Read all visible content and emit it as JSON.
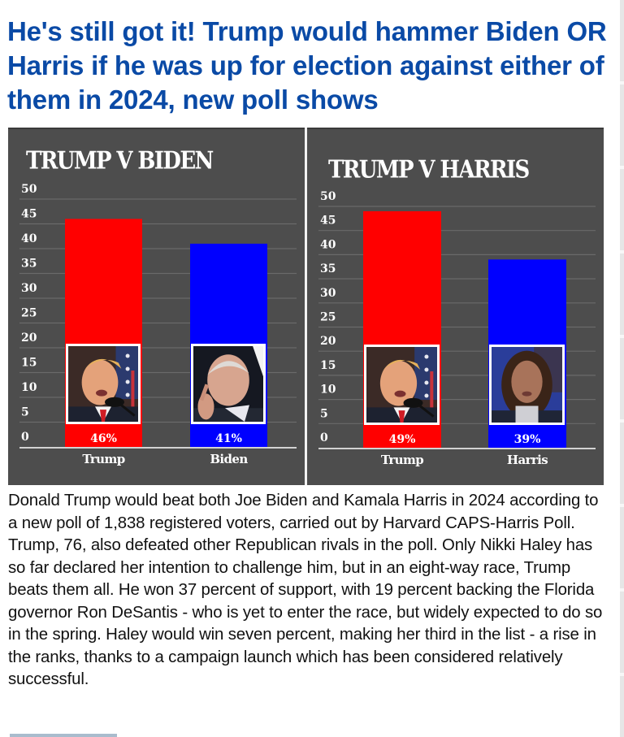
{
  "article": {
    "headline": "He's still got it! Trump would hammer Biden OR Harris if he was up for election against either of them in 2024, new poll shows",
    "body": "Donald Trump would beat both Joe Biden and Kamala Harris in 2024 according to a new poll of 1,838 registered voters, carried out by Harvard CAPS-Harris Poll. Trump, 76, also defeated other Republican rivals in the poll. Only Nikki Haley has so far declared her intention to challenge him, but in an eight-way race, Trump beats them all. He won 37 percent of support, with 19 percent backing the Florida governor Ron DeSantis - who is yet to enter the race, but widely expected to do so in the spring. Haley would win seven percent, making her third in the list - a rise in the ranks, thanks to a campaign launch which has been considered relatively successful."
  },
  "colors": {
    "headline": "#0a4aa6",
    "panel_bg": "#4d4d4d",
    "gridline": "#6a6a6a",
    "republican": "#ff0000",
    "democrat": "#0000ff",
    "text_light": "#ffffff"
  },
  "chart_data": [
    {
      "type": "bar",
      "title": "TRUMP V BIDEN",
      "categories": [
        "Trump",
        "Biden"
      ],
      "values": [
        46,
        41
      ],
      "value_labels": [
        "46%",
        "41%"
      ],
      "bar_colors": [
        "#ff0000",
        "#0000ff"
      ],
      "photos": [
        "trump-portrait",
        "biden-portrait"
      ],
      "yticks": [
        0,
        5,
        10,
        15,
        20,
        25,
        30,
        35,
        40,
        45,
        50
      ],
      "ylim": [
        0,
        50
      ],
      "xlabel": "",
      "ylabel": "",
      "grid": true,
      "legend": "none"
    },
    {
      "type": "bar",
      "title": "TRUMP V HARRIS",
      "categories": [
        "Trump",
        "Harris"
      ],
      "values": [
        49,
        39
      ],
      "value_labels": [
        "49%",
        "39%"
      ],
      "bar_colors": [
        "#ff0000",
        "#0000ff"
      ],
      "photos": [
        "trump-portrait",
        "harris-portrait"
      ],
      "yticks": [
        0,
        5,
        10,
        15,
        20,
        25,
        30,
        35,
        40,
        45,
        50
      ],
      "ylim": [
        0,
        50
      ],
      "xlabel": "",
      "ylabel": "",
      "grid": true,
      "legend": "none"
    }
  ]
}
